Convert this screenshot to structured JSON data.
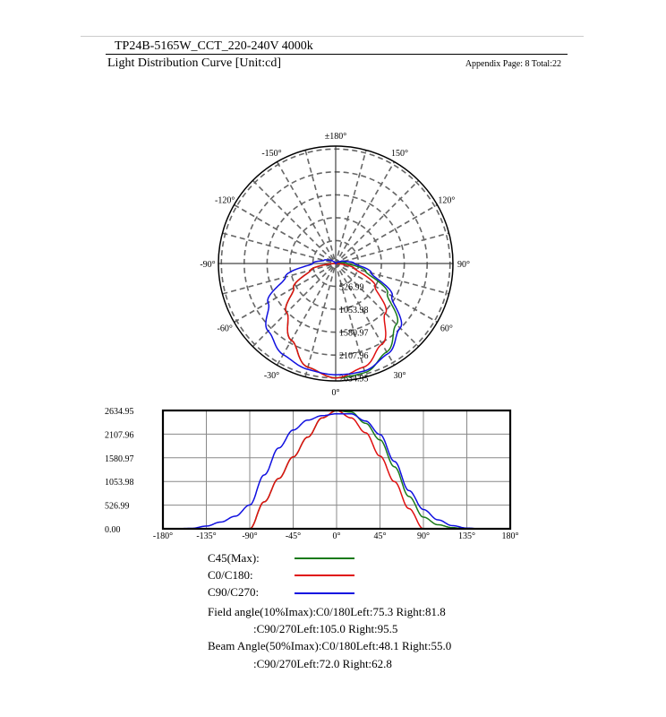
{
  "header": {
    "title": "TP24B-5165W_CCT_220-240V 4000k",
    "subtitle": "Light Distribution Curve [Unit:cd]",
    "appendix": "Appendix Page: 8  Total:22"
  },
  "chart_data": {
    "type": "line",
    "unit": "cd",
    "polar": {
      "angle_labels": [
        "0°",
        "30°",
        "60°",
        "90°",
        "120°",
        "150°",
        "±180°",
        "-150°",
        "-120°",
        "-90°",
        "-60°",
        "-30°"
      ],
      "ring_labels": [
        "526.99",
        "1053.98",
        "1580.97",
        "2107.96",
        "2634.95"
      ]
    },
    "cartesian": {
      "xlim": [
        -180,
        180
      ],
      "ylim": [
        0,
        2634.95
      ],
      "xticks": [
        "-180°",
        "-135°",
        "-90°",
        "-45°",
        "0°",
        "45°",
        "90°",
        "135°",
        "180°"
      ],
      "yticks": [
        "0.00",
        "526.99",
        "1053.98",
        "1580.97",
        "2107.96",
        "2634.95"
      ],
      "grid": true
    },
    "x": [
      -180,
      -165,
      -150,
      -135,
      -120,
      -105,
      -90,
      -75,
      -60,
      -45,
      -30,
      -15,
      0,
      15,
      30,
      45,
      60,
      75,
      90,
      105,
      120,
      135,
      150,
      165,
      180
    ],
    "series": [
      {
        "name": "C45(Max)",
        "color": "#1a7a1a",
        "values": [
          0,
          0,
          0,
          0,
          0,
          0,
          0,
          600,
          1120,
          1600,
          2040,
          2470,
          2630,
          2600,
          2350,
          1980,
          1380,
          720,
          260,
          90,
          25,
          0,
          0,
          0,
          0
        ]
      },
      {
        "name": "C0/C180",
        "color": "#e01010",
        "values": [
          0,
          0,
          0,
          0,
          0,
          0,
          0,
          600,
          1120,
          1600,
          2040,
          2470,
          2634,
          2470,
          2140,
          1620,
          1050,
          450,
          0,
          0,
          0,
          0,
          0,
          0,
          0
        ]
      },
      {
        "name": "C90/C270",
        "color": "#1010e0",
        "values": [
          0,
          5,
          10,
          60,
          150,
          280,
          530,
          1200,
          1800,
          2200,
          2420,
          2520,
          2560,
          2560,
          2400,
          2100,
          1500,
          850,
          430,
          200,
          70,
          15,
          0,
          0,
          0
        ]
      }
    ]
  },
  "legend": {
    "items": [
      "C45(Max):",
      "C0/C180:",
      "C90/C270:"
    ]
  },
  "angles": {
    "field_line1": "Field angle(10%Imax):C0/180Left:75.3 Right:81.8",
    "field_line2": ":C90/270Left:105.0 Right:95.5",
    "beam_line1": "Beam Angle(50%Imax):C0/180Left:48.1 Right:55.0",
    "beam_line2": ":C90/270Left:72.0 Right:62.8"
  }
}
